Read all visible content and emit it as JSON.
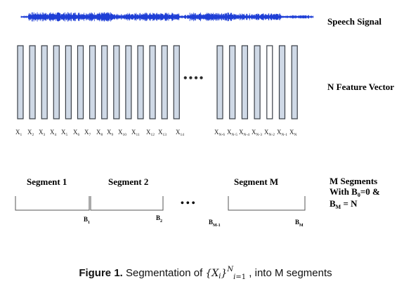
{
  "figure": {
    "speech_signal_label": "Speech Signal",
    "feature_label": "N Feature Vector",
    "segments_label_line1": "M Segments",
    "segments_label_line2_pre": "With B",
    "segments_label_line2_sub": "0",
    "segments_label_line2_post": "=0 &",
    "segments_label_line3_pre": "B",
    "segments_label_line3_sub": "M",
    "segments_label_line3_post": " = N",
    "ellipsis": "••••",
    "segment_ellipsis": "•••",
    "vectors_left_count": 14,
    "vectors_right_count": 7,
    "vectors_right_highlight_index": 4,
    "x_labels_left": [
      {
        "base": "X",
        "sub": "1"
      },
      {
        "base": "X",
        "sub": "2"
      },
      {
        "base": "X",
        "sub": "3"
      },
      {
        "base": "X",
        "sub": "4"
      },
      {
        "base": "X",
        "sub": "5"
      },
      {
        "base": "X",
        "sub": "6"
      },
      {
        "base": "X",
        "sub": "7"
      },
      {
        "base": "X",
        "sub": "8"
      },
      {
        "base": "X",
        "sub": "9"
      },
      {
        "base": "X",
        "sub": "10"
      },
      {
        "base": "X",
        "sub": "11"
      },
      {
        "base": "X",
        "sub": "12"
      },
      {
        "base": "X",
        "sub": "13"
      },
      {
        "base": "X",
        "sub": "14"
      }
    ],
    "x_labels_right": [
      {
        "base": "X",
        "sub": "N-6"
      },
      {
        "base": "X",
        "sub": "N-5"
      },
      {
        "base": "X",
        "sub": "N-4"
      },
      {
        "base": "X",
        "sub": "N-3"
      },
      {
        "base": "X",
        "sub": "N-2"
      },
      {
        "base": "X",
        "sub": "N-1"
      },
      {
        "base": "X",
        "sub": "N"
      }
    ],
    "segments": [
      {
        "label": "Segment 1",
        "boundary_base": "B",
        "boundary_sub": "1"
      },
      {
        "label": "Segment 2",
        "boundary_base": "B",
        "boundary_sub": "2"
      },
      {
        "label": "Segment M",
        "boundary_base": "B",
        "boundary_sub": "M"
      }
    ],
    "extra_boundary": {
      "base": "B",
      "sub": "M-1"
    },
    "colors": {
      "waveform": "#1f3fd6",
      "vector_fill": "#cfd9e6",
      "vector_stroke": "#3a3f47",
      "highlight_fill": "#ffffff",
      "bracket": "#555555"
    }
  },
  "caption": {
    "prefix": "Figure 1.",
    "text_before": " Segmentation of ",
    "math_open": "{X",
    "math_i": "i",
    "math_close": "}",
    "math_sup": "N",
    "math_sub_i": "i",
    "math_sub_rest": "=1",
    "text_after": " ,  into M segments"
  }
}
